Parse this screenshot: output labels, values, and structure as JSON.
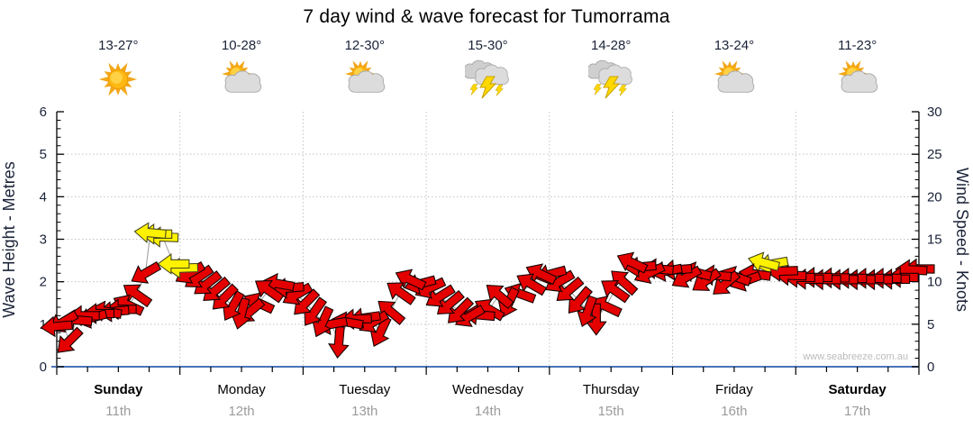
{
  "title": "7 day wind & wave forecast for Tumorrama",
  "watermark": "www.seabreeze.com.au",
  "days": [
    {
      "name": "Sunday",
      "date": "11th",
      "temp": "13-27°",
      "icon": "sunny",
      "bold": true
    },
    {
      "name": "Monday",
      "date": "12th",
      "temp": "10-28°",
      "icon": "partly",
      "bold": false
    },
    {
      "name": "Tuesday",
      "date": "13th",
      "temp": "12-30°",
      "icon": "partly",
      "bold": false
    },
    {
      "name": "Wednesday",
      "date": "14th",
      "temp": "15-30°",
      "icon": "storm",
      "bold": false
    },
    {
      "name": "Thursday",
      "date": "15th",
      "temp": "14-28°",
      "icon": "storm",
      "bold": false
    },
    {
      "name": "Friday",
      "date": "16th",
      "temp": "13-24°",
      "icon": "partly",
      "bold": false
    },
    {
      "name": "Saturday",
      "date": "17th",
      "temp": "11-23°",
      "icon": "partly",
      "bold": true
    }
  ],
  "colors": {
    "red_arrow": "#E40000",
    "yellow_arrow": "#FFF200",
    "axis_text": "#1A2238",
    "day_text": "#000000",
    "date_gray": "#9C9C9C",
    "baseline_blue": "#4A74B8",
    "grid": "#C3C3C3",
    "connector": "#9B9B9B",
    "watermark_gray": "#BBBBBB"
  },
  "chart_data": {
    "type": "wind-arrow-line",
    "title": "7 day wind & wave forecast for Tumorrama",
    "left_axis": {
      "label": "Wave Height - Metres",
      "min": 0,
      "max": 6,
      "major": 1,
      "minor": 0.2
    },
    "right_axis": {
      "label": "Wind Speed - Knots",
      "min": 0,
      "max": 30,
      "major": 5,
      "minor": 1
    },
    "x_axis": {
      "days": [
        "Sunday",
        "Monday",
        "Tuesday",
        "Wednesday",
        "Thursday",
        "Friday",
        "Saturday"
      ],
      "ticks_per_day": 4
    },
    "grid": "dotted, horizontal at each metre 1-5, vertical at day boundaries",
    "scale_note": "single series; value in metres on left axis, knots = metres x 5 on right axis; dir = screen angle arrow points (0=right,90=down,180=left,270=up); c: r=red wind, y=yellow gust",
    "points": [
      {
        "d": 0.0,
        "m": 0.95,
        "dir": 175,
        "c": "r"
      },
      {
        "d": 0.05,
        "m": 1.05,
        "dir": 150,
        "c": "r"
      },
      {
        "d": 0.1,
        "m": 0.6,
        "dir": 135,
        "c": "r"
      },
      {
        "d": 0.16,
        "m": 1.1,
        "dir": 185,
        "c": "r"
      },
      {
        "d": 0.22,
        "m": 1.2,
        "dir": 180,
        "c": "r"
      },
      {
        "d": 0.28,
        "m": 1.15,
        "dir": 165,
        "c": "r"
      },
      {
        "d": 0.34,
        "m": 1.25,
        "dir": 180,
        "c": "r"
      },
      {
        "d": 0.4,
        "m": 1.3,
        "dir": 190,
        "c": "r"
      },
      {
        "d": 0.46,
        "m": 1.3,
        "dir": 175,
        "c": "r"
      },
      {
        "d": 0.52,
        "m": 1.35,
        "dir": 180,
        "c": "r"
      },
      {
        "d": 0.58,
        "m": 1.45,
        "dir": 205,
        "c": "r"
      },
      {
        "d": 0.65,
        "m": 1.7,
        "dir": 215,
        "c": "r"
      },
      {
        "d": 0.72,
        "m": 2.2,
        "dir": 150,
        "c": "r"
      },
      {
        "d": 0.76,
        "m": 3.15,
        "dir": 185,
        "c": "y"
      },
      {
        "d": 0.81,
        "m": 3.12,
        "dir": 180,
        "c": "y"
      },
      {
        "d": 0.86,
        "m": 3.05,
        "dir": 182,
        "c": "y"
      },
      {
        "d": 0.95,
        "m": 2.42,
        "dir": 180,
        "c": "y"
      },
      {
        "d": 1.02,
        "m": 2.32,
        "dir": 178,
        "c": "y"
      },
      {
        "d": 1.08,
        "m": 2.2,
        "dir": 150,
        "c": "r"
      },
      {
        "d": 1.15,
        "m": 2.1,
        "dir": 145,
        "c": "r"
      },
      {
        "d": 1.22,
        "m": 1.95,
        "dir": 142,
        "c": "r"
      },
      {
        "d": 1.29,
        "m": 1.8,
        "dir": 140,
        "c": "r"
      },
      {
        "d": 1.36,
        "m": 1.62,
        "dir": 135,
        "c": "r"
      },
      {
        "d": 1.43,
        "m": 1.42,
        "dir": 120,
        "c": "r"
      },
      {
        "d": 1.5,
        "m": 1.25,
        "dir": 105,
        "c": "r"
      },
      {
        "d": 1.57,
        "m": 1.3,
        "dir": 140,
        "c": "r"
      },
      {
        "d": 1.64,
        "m": 1.5,
        "dir": 205,
        "c": "r"
      },
      {
        "d": 1.72,
        "m": 1.8,
        "dir": 215,
        "c": "r"
      },
      {
        "d": 1.8,
        "m": 1.95,
        "dir": 190,
        "c": "r"
      },
      {
        "d": 1.88,
        "m": 1.85,
        "dir": 175,
        "c": "r"
      },
      {
        "d": 1.95,
        "m": 1.7,
        "dir": 150,
        "c": "r"
      },
      {
        "d": 2.02,
        "m": 1.5,
        "dir": 135,
        "c": "r"
      },
      {
        "d": 2.09,
        "m": 1.28,
        "dir": 125,
        "c": "r"
      },
      {
        "d": 2.16,
        "m": 1.05,
        "dir": 115,
        "c": "r"
      },
      {
        "d": 2.23,
        "m": 1.0,
        "dir": 170,
        "c": "r"
      },
      {
        "d": 2.29,
        "m": 0.58,
        "dir": 95,
        "c": "r"
      },
      {
        "d": 2.36,
        "m": 1.05,
        "dir": 190,
        "c": "r"
      },
      {
        "d": 2.43,
        "m": 1.12,
        "dir": 178,
        "c": "r"
      },
      {
        "d": 2.5,
        "m": 1.15,
        "dir": 172,
        "c": "r"
      },
      {
        "d": 2.57,
        "m": 1.05,
        "dir": 150,
        "c": "r"
      },
      {
        "d": 2.63,
        "m": 0.82,
        "dir": 115,
        "c": "r"
      },
      {
        "d": 2.71,
        "m": 1.3,
        "dir": 220,
        "c": "r"
      },
      {
        "d": 2.79,
        "m": 1.75,
        "dir": 215,
        "c": "r"
      },
      {
        "d": 2.87,
        "m": 2.05,
        "dir": 205,
        "c": "r"
      },
      {
        "d": 2.95,
        "m": 1.95,
        "dir": 165,
        "c": "r"
      },
      {
        "d": 3.03,
        "m": 1.85,
        "dir": 155,
        "c": "r"
      },
      {
        "d": 3.11,
        "m": 1.65,
        "dir": 148,
        "c": "r"
      },
      {
        "d": 3.19,
        "m": 1.48,
        "dir": 140,
        "c": "r"
      },
      {
        "d": 3.27,
        "m": 1.3,
        "dir": 135,
        "c": "r"
      },
      {
        "d": 3.35,
        "m": 1.18,
        "dir": 150,
        "c": "r"
      },
      {
        "d": 3.43,
        "m": 1.22,
        "dir": 185,
        "c": "r"
      },
      {
        "d": 3.51,
        "m": 1.35,
        "dir": 210,
        "c": "r"
      },
      {
        "d": 3.59,
        "m": 1.68,
        "dir": 220,
        "c": "r"
      },
      {
        "d": 3.67,
        "m": 1.5,
        "dir": 115,
        "c": "r"
      },
      {
        "d": 3.76,
        "m": 1.72,
        "dir": 200,
        "c": "r"
      },
      {
        "d": 3.85,
        "m": 1.95,
        "dir": 210,
        "c": "r"
      },
      {
        "d": 3.93,
        "m": 2.18,
        "dir": 205,
        "c": "r"
      },
      {
        "d": 4.01,
        "m": 2.18,
        "dir": 165,
        "c": "r"
      },
      {
        "d": 4.08,
        "m": 2.0,
        "dir": 150,
        "c": "r"
      },
      {
        "d": 4.16,
        "m": 1.8,
        "dir": 140,
        "c": "r"
      },
      {
        "d": 4.24,
        "m": 1.55,
        "dir": 130,
        "c": "r"
      },
      {
        "d": 4.31,
        "m": 1.3,
        "dir": 110,
        "c": "r"
      },
      {
        "d": 4.38,
        "m": 1.12,
        "dir": 90,
        "c": "r"
      },
      {
        "d": 4.46,
        "m": 1.42,
        "dir": 205,
        "c": "r"
      },
      {
        "d": 4.53,
        "m": 1.8,
        "dir": 215,
        "c": "r"
      },
      {
        "d": 4.6,
        "m": 2.0,
        "dir": 222,
        "c": "r"
      },
      {
        "d": 4.67,
        "m": 2.45,
        "dir": 205,
        "c": "r"
      },
      {
        "d": 4.74,
        "m": 2.35,
        "dir": 175,
        "c": "r"
      },
      {
        "d": 4.81,
        "m": 2.2,
        "dir": 155,
        "c": "r"
      },
      {
        "d": 4.88,
        "m": 2.3,
        "dir": 185,
        "c": "r"
      },
      {
        "d": 4.95,
        "m": 2.25,
        "dir": 170,
        "c": "r"
      },
      {
        "d": 5.03,
        "m": 2.28,
        "dir": 175,
        "c": "r"
      },
      {
        "d": 5.11,
        "m": 2.1,
        "dir": 150,
        "c": "r"
      },
      {
        "d": 5.19,
        "m": 2.22,
        "dir": 195,
        "c": "r"
      },
      {
        "d": 5.27,
        "m": 2.02,
        "dir": 145,
        "c": "r"
      },
      {
        "d": 5.35,
        "m": 2.15,
        "dir": 185,
        "c": "r"
      },
      {
        "d": 5.43,
        "m": 1.95,
        "dir": 140,
        "c": "r"
      },
      {
        "d": 5.51,
        "m": 2.12,
        "dir": 200,
        "c": "r"
      },
      {
        "d": 5.59,
        "m": 2.02,
        "dir": 160,
        "c": "r"
      },
      {
        "d": 5.67,
        "m": 2.18,
        "dir": 188,
        "c": "r"
      },
      {
        "d": 5.74,
        "m": 2.45,
        "dir": 195,
        "c": "y"
      },
      {
        "d": 5.81,
        "m": 2.42,
        "dir": 170,
        "c": "y"
      },
      {
        "d": 5.89,
        "m": 2.25,
        "dir": 178,
        "c": "r"
      },
      {
        "d": 5.96,
        "m": 2.15,
        "dir": 182,
        "c": "r"
      },
      {
        "d": 6.03,
        "m": 2.1,
        "dir": 180,
        "c": "r"
      },
      {
        "d": 6.1,
        "m": 2.06,
        "dir": 180,
        "c": "r"
      },
      {
        "d": 6.17,
        "m": 2.1,
        "dir": 180,
        "c": "r"
      },
      {
        "d": 6.24,
        "m": 2.05,
        "dir": 180,
        "c": "r"
      },
      {
        "d": 6.31,
        "m": 2.09,
        "dir": 180,
        "c": "r"
      },
      {
        "d": 6.38,
        "m": 2.05,
        "dir": 180,
        "c": "r"
      },
      {
        "d": 6.45,
        "m": 2.08,
        "dir": 180,
        "c": "r"
      },
      {
        "d": 6.52,
        "m": 2.05,
        "dir": 180,
        "c": "r"
      },
      {
        "d": 6.59,
        "m": 2.08,
        "dir": 180,
        "c": "r"
      },
      {
        "d": 6.66,
        "m": 2.05,
        "dir": 180,
        "c": "r"
      },
      {
        "d": 6.73,
        "m": 2.08,
        "dir": 180,
        "c": "r"
      },
      {
        "d": 6.8,
        "m": 2.06,
        "dir": 180,
        "c": "r"
      },
      {
        "d": 6.87,
        "m": 2.1,
        "dir": 180,
        "c": "r"
      },
      {
        "d": 6.94,
        "m": 2.28,
        "dir": 183,
        "c": "r"
      },
      {
        "d": 7.0,
        "m": 2.3,
        "dir": 180,
        "c": "r"
      }
    ]
  }
}
